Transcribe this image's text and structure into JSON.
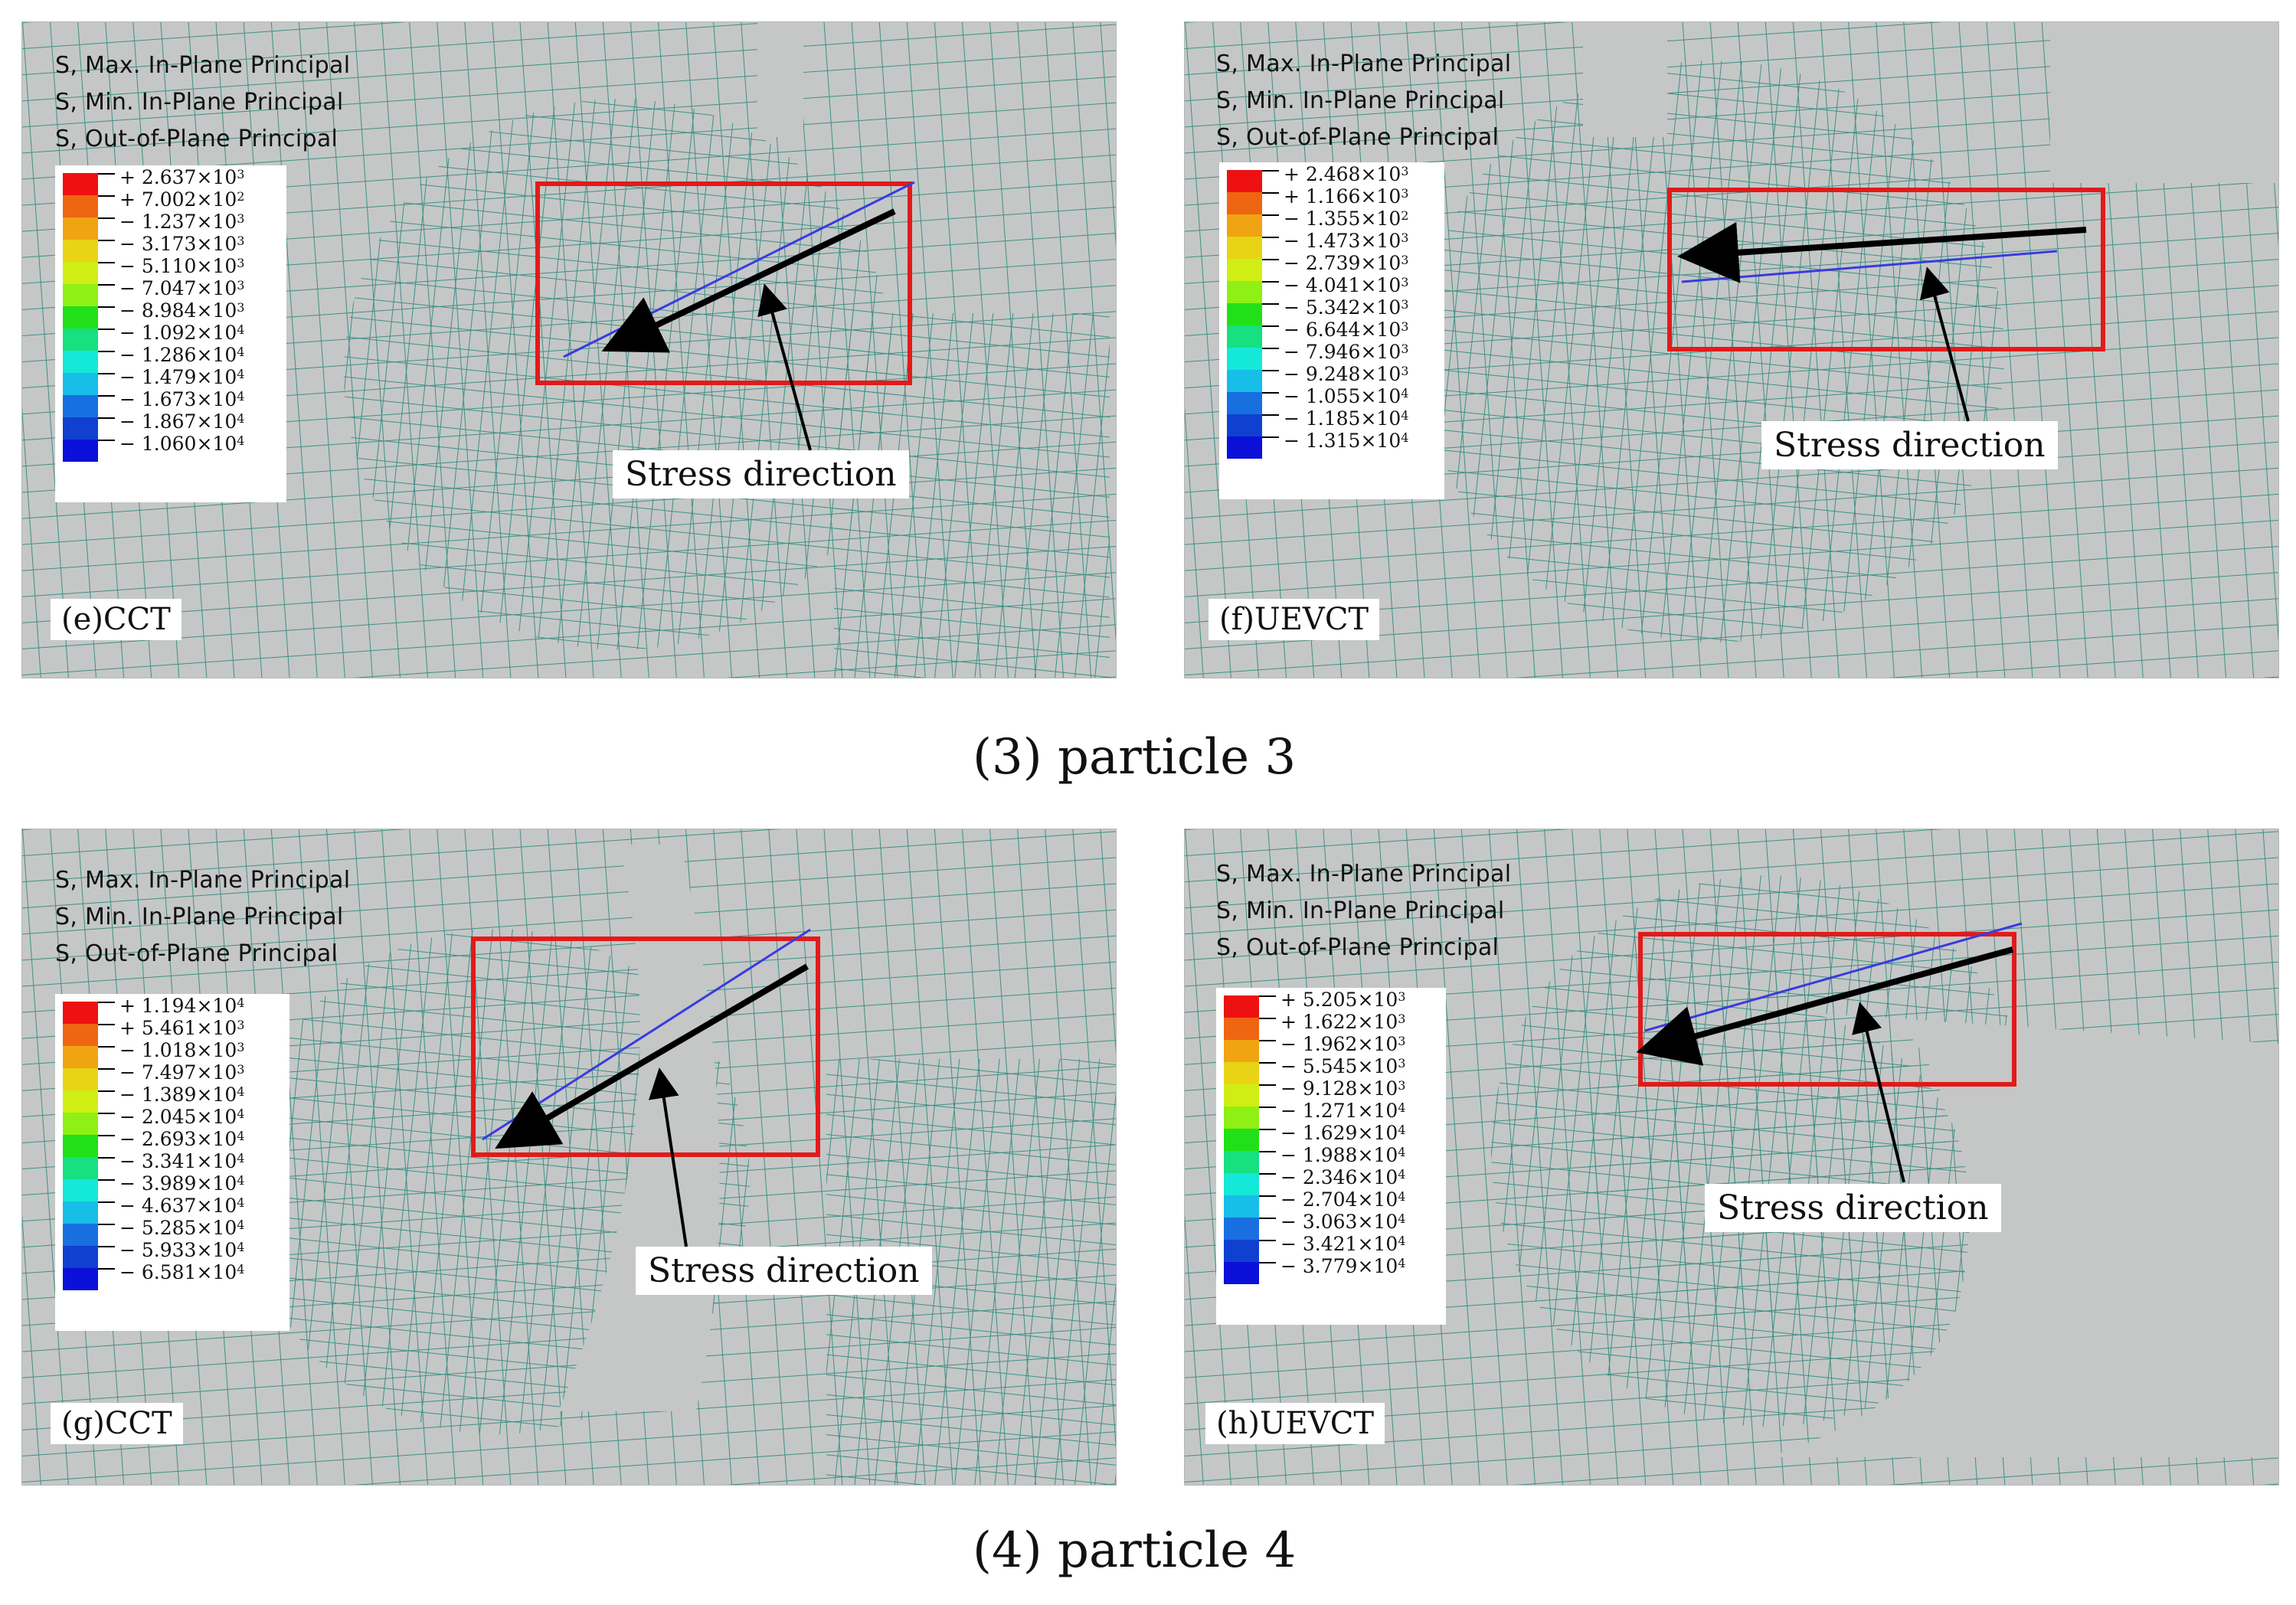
{
  "field_labels": [
    "S, Max. In-Plane Principal",
    "S, Min. In-Plane Principal",
    "S, Out-of-Plane Principal"
  ],
  "annotation": "Stress direction",
  "legend_colors": [
    "#ee1111",
    "#ee6611",
    "#f0a412",
    "#e8d414",
    "#d0ee14",
    "#8ef014",
    "#22e018",
    "#16e080",
    "#14e8d8",
    "#16bee8",
    "#1870e0",
    "#1040d0",
    "#0a10d8"
  ],
  "rows": [
    {
      "caption": "(3) particle 3",
      "panels": [
        {
          "label": "(e)CCT",
          "legend": [
            {
              "m": "+ 2.637",
              "e": "3"
            },
            {
              "m": "+ 7.002",
              "e": "2"
            },
            {
              "m": "− 1.237",
              "e": "3"
            },
            {
              "m": "− 3.173",
              "e": "3"
            },
            {
              "m": "− 5.110",
              "e": "3"
            },
            {
              "m": "− 7.047",
              "e": "3"
            },
            {
              "m": "− 8.984",
              "e": "3"
            },
            {
              "m": "− 1.092",
              "e": "4"
            },
            {
              "m": "− 1.286",
              "e": "4"
            },
            {
              "m": "− 1.479",
              "e": "4"
            },
            {
              "m": "− 1.673",
              "e": "4"
            },
            {
              "m": "− 1.867",
              "e": "4"
            },
            {
              "m": "− 1.060",
              "e": "4"
            }
          ]
        },
        {
          "label": "(f)UEVCT",
          "legend": [
            {
              "m": "+ 2.468",
              "e": "3"
            },
            {
              "m": "+ 1.166",
              "e": "3"
            },
            {
              "m": "− 1.355",
              "e": "2"
            },
            {
              "m": "− 1.473",
              "e": "3"
            },
            {
              "m": "− 2.739",
              "e": "3"
            },
            {
              "m": "− 4.041",
              "e": "3"
            },
            {
              "m": "− 5.342",
              "e": "3"
            },
            {
              "m": "− 6.644",
              "e": "3"
            },
            {
              "m": "− 7.946",
              "e": "3"
            },
            {
              "m": "− 9.248",
              "e": "3"
            },
            {
              "m": "− 1.055",
              "e": "4"
            },
            {
              "m": "− 1.185",
              "e": "4"
            },
            {
              "m": "− 1.315",
              "e": "4"
            }
          ]
        }
      ]
    },
    {
      "caption": "(4) particle 4",
      "panels": [
        {
          "label": "(g)CCT",
          "legend": [
            {
              "m": "+ 1.194",
              "e": "4"
            },
            {
              "m": "+ 5.461",
              "e": "3"
            },
            {
              "m": "− 1.018",
              "e": "3"
            },
            {
              "m": "− 7.497",
              "e": "3"
            },
            {
              "m": "− 1.389",
              "e": "4"
            },
            {
              "m": "− 2.045",
              "e": "4"
            },
            {
              "m": "− 2.693",
              "e": "4"
            },
            {
              "m": "− 3.341",
              "e": "4"
            },
            {
              "m": "− 3.989",
              "e": "4"
            },
            {
              "m": "− 4.637",
              "e": "4"
            },
            {
              "m": "− 5.285",
              "e": "4"
            },
            {
              "m": "− 5.933",
              "e": "4"
            },
            {
              "m": "− 6.581",
              "e": "4"
            }
          ]
        },
        {
          "label": "(h)UEVCT",
          "legend": [
            {
              "m": "+ 5.205",
              "e": "3"
            },
            {
              "m": "+ 1.622",
              "e": "3"
            },
            {
              "m": "− 1.962",
              "e": "3"
            },
            {
              "m": "− 5.545",
              "e": "3"
            },
            {
              "m": "− 9.128",
              "e": "3"
            },
            {
              "m": "− 1.271",
              "e": "4"
            },
            {
              "m": "− 1.629",
              "e": "4"
            },
            {
              "m": "− 1.988",
              "e": "4"
            },
            {
              "m": "− 2.346",
              "e": "4"
            },
            {
              "m": "− 2.704",
              "e": "4"
            },
            {
              "m": "− 3.063",
              "e": "4"
            },
            {
              "m": "− 3.421",
              "e": "4"
            },
            {
              "m": "− 3.779",
              "e": "4"
            }
          ]
        }
      ]
    }
  ]
}
